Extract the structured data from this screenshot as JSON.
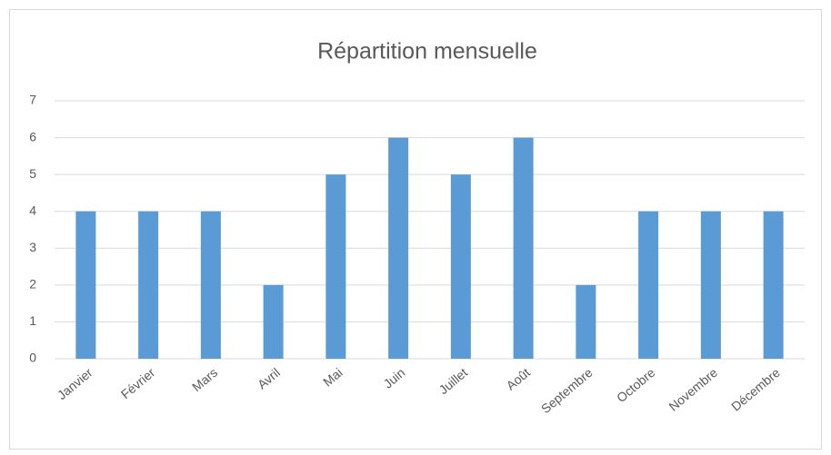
{
  "chart_data": {
    "type": "bar",
    "title": "Répartition mensuelle",
    "categories": [
      "Janvier",
      "Février",
      "Mars",
      "Avril",
      "Mai",
      "Juin",
      "Juillet",
      "Août",
      "Septembre",
      "Octobre",
      "Novembre",
      "Décembre"
    ],
    "values": [
      4,
      4,
      4,
      2,
      5,
      6,
      5,
      6,
      2,
      4,
      4,
      4
    ],
    "color": "#5b9bd5",
    "ylim": [
      0,
      7
    ],
    "yticks": [
      0,
      1,
      2,
      3,
      4,
      5,
      6,
      7
    ],
    "grid": true
  }
}
